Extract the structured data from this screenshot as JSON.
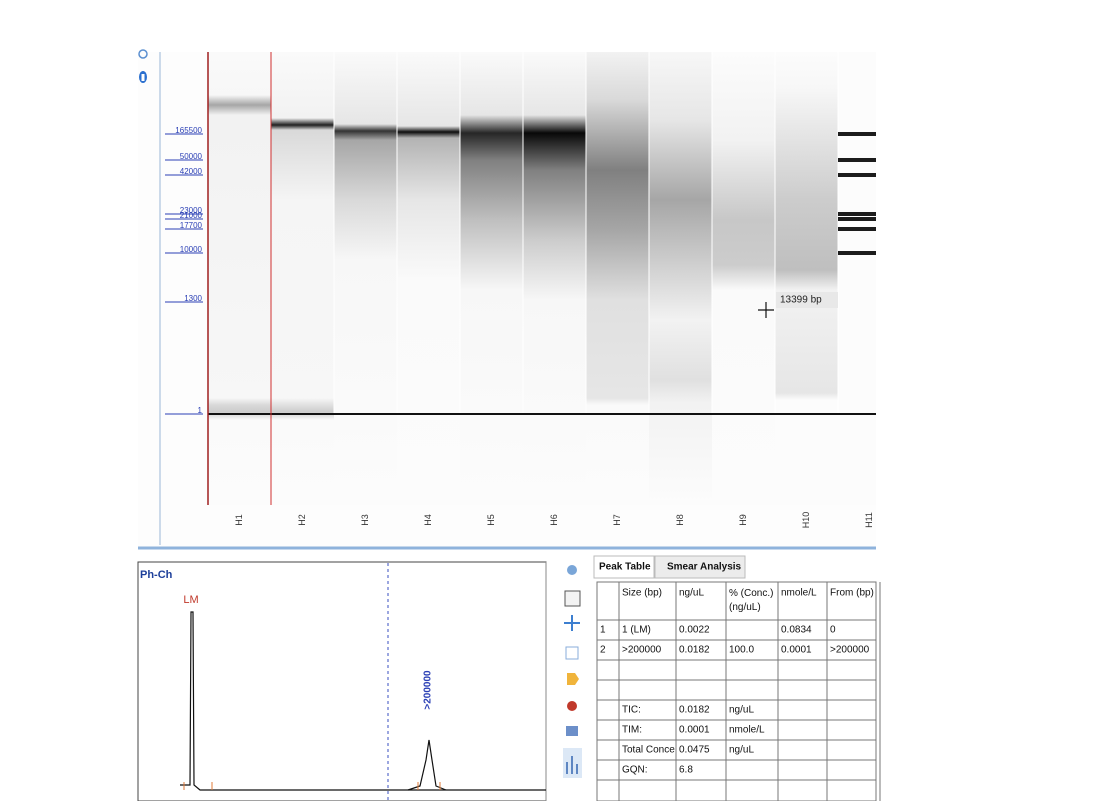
{
  "gel": {
    "ladder": [
      "165500",
      "50000",
      "42000",
      "23000",
      "21000",
      "17700",
      "10000",
      "1300",
      "1"
    ],
    "lanes": [
      "H1",
      "H2",
      "H3",
      "H4",
      "H5",
      "H6",
      "H7",
      "H8",
      "H9",
      "H10",
      "H11"
    ],
    "tooltip": "13399 bp"
  },
  "electropherogram": {
    "title": "Ph-Ch",
    "peak_label": "LM",
    "marker_label": ">200000"
  },
  "table": {
    "tabs": [
      "Peak Table",
      "Smear Analysis"
    ],
    "headers": [
      "Size (bp)",
      "ng/uL",
      "% (Conc.) (ng/uL)",
      "nmole/L",
      "From (bp)"
    ],
    "rows": [
      [
        "1",
        "1 (LM)",
        "0.0022",
        null,
        "0.0834",
        "0"
      ],
      [
        "2",
        ">200000",
        "0.0182",
        "100.0",
        "0.0001",
        ">200000"
      ]
    ],
    "summary": [
      {
        "label": "TIC:",
        "value": "0.0182",
        "unit": "ng/uL"
      },
      {
        "label": "TIM:",
        "value": "0.0001",
        "unit": "nmole/L"
      },
      {
        "label": "Total Conce",
        "value": "0.0475",
        "unit": "ng/uL"
      },
      {
        "label": "GQN:",
        "value": "6.8",
        "unit": null
      }
    ]
  }
}
